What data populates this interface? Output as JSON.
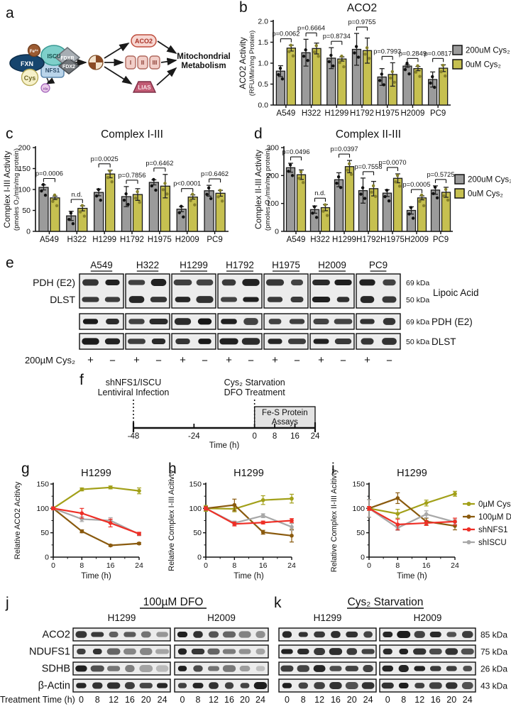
{
  "panel_letters": {
    "a": "a",
    "b": "b",
    "c": "c",
    "d": "d",
    "e": "e",
    "f": "f",
    "g": "g",
    "h": "h",
    "i": "i",
    "j": "j",
    "k": "k"
  },
  "colors": {
    "bar_gray": "#9b9b9b",
    "bar_olive": "#c6c050",
    "dot_gray": "#111111",
    "dot_olive": "#87812a",
    "line_olive": "#a2a019",
    "line_brown": "#8a5a0e",
    "line_red": "#ee2f26",
    "line_gray": "#a8a8a8",
    "blot_band": "#161616",
    "blot_bg": "#ececec"
  },
  "panel_a": {
    "fe": "Fe³⁺",
    "fxn": "FXN",
    "iscu": "ISCU",
    "nfs1": "NFS1",
    "fdxr": "FDXR",
    "fdx2": "FDX2",
    "cys": "Cys",
    "ala": "Ala",
    "aco2": "ACO2",
    "complexes": [
      "I",
      "II",
      "III"
    ],
    "lias": "LIAS",
    "target_lines": [
      "Mitochondrial",
      "Metabolism"
    ]
  },
  "legend_bars": {
    "items": [
      {
        "label": "200uM Cys₂",
        "color_key": "bar_gray"
      },
      {
        "label": "0uM Cys₂",
        "color_key": "bar_olive"
      }
    ]
  },
  "legend_lines": {
    "items": [
      {
        "label": "0µM Cys₂",
        "color_key": "line_olive"
      },
      {
        "label": "100µM DFO",
        "color_key": "line_brown"
      },
      {
        "label": "shNFS1",
        "color_key": "line_red"
      },
      {
        "label": "shISCU",
        "color_key": "line_gray"
      }
    ]
  },
  "chart_data": {
    "b": {
      "type": "bar",
      "title": "ACO2",
      "ylabel_lines": [
        "ACO2 Activity",
        "(RFU/Min/mg Protein)"
      ],
      "categories": [
        "A549",
        "H322",
        "H1299",
        "H1792",
        "H1975",
        "H2009",
        "PC9"
      ],
      "series": [
        {
          "name": "200uM Cys₂",
          "values": [
            0.81,
            1.25,
            1.12,
            1.33,
            0.67,
            0.93,
            0.61
          ],
          "errors": [
            0.13,
            0.32,
            0.25,
            0.38,
            0.2,
            0.03,
            0.18
          ]
        },
        {
          "name": "0uM Cys₂",
          "values": [
            1.36,
            1.35,
            1.1,
            1.3,
            0.73,
            0.87,
            0.88
          ],
          "errors": [
            0.07,
            0.13,
            0.05,
            0.3,
            0.28,
            0.05,
            0.08
          ]
        }
      ],
      "pvalues": [
        "p=0.0062",
        "p=0.6664",
        "p=0.8734",
        "p=0.9755",
        "p=0.7993",
        "p=0.2849",
        "p=0.0817"
      ],
      "ylim": [
        0,
        2
      ],
      "yticks": [
        0,
        0.5,
        1,
        1.5,
        2
      ],
      "ytick_labels": [
        "0.0",
        "0.5",
        "1.0",
        "1.5",
        "2.0"
      ]
    },
    "c": {
      "type": "bar",
      "title": "Complex I-III",
      "ylabel_lines": [
        "Complex I-III Activity",
        "(pmoles O₂/min/mg protein)"
      ],
      "categories": [
        "A549",
        "H322",
        "H1299",
        "H1792",
        "H1975",
        "H2009",
        "PC9"
      ],
      "series": [
        {
          "name": "200uM Cys₂",
          "values": [
            105,
            37,
            93,
            83,
            117,
            53,
            97
          ],
          "errors": [
            6,
            11,
            8,
            24,
            6,
            6,
            13
          ]
        },
        {
          "name": "0uM Cys₂",
          "values": [
            80,
            55,
            137,
            88,
            108,
            82,
            91
          ],
          "errors": [
            4,
            6,
            9,
            14,
            28,
            5,
            7
          ]
        }
      ],
      "pvalues": [
        "p=0.0006",
        "n.d.",
        "p=0.0025",
        "p=0.7856",
        "p=0.6462",
        "p<0.0001",
        "p=0.6462"
      ],
      "ylim": [
        0,
        200
      ],
      "yticks": [
        0,
        50,
        100,
        150,
        200
      ],
      "ytick_labels": [
        "0",
        "50",
        "100",
        "150",
        "200"
      ]
    },
    "d": {
      "type": "bar",
      "title": "Complex II-III",
      "ylabel_lines": [
        "Complex II-III Activity",
        "(pmoles O₂/min/mg protein)"
      ],
      "categories": [
        "A549",
        "H322",
        "H1299",
        "H1792",
        "H1975",
        "H2009",
        "PC9"
      ],
      "series": [
        {
          "name": "200uM Cys₂",
          "values": [
            228,
            78,
            185,
            146,
            137,
            75,
            148
          ],
          "errors": [
            16,
            13,
            25,
            45,
            12,
            13,
            15
          ]
        },
        {
          "name": "0uM Cys₂",
          "values": [
            203,
            85,
            232,
            153,
            190,
            120,
            140
          ],
          "errors": [
            17,
            11,
            22,
            26,
            16,
            7,
            18
          ]
        }
      ],
      "pvalues": [
        "p=0.0496",
        "n.d.",
        "p=0.0397",
        "p=0.7558",
        "p=0.0070",
        "p=0.0005",
        "p=0.5725"
      ],
      "ylim": [
        0,
        300
      ],
      "yticks": [
        0,
        100,
        200,
        300
      ],
      "ytick_labels": [
        "0",
        "100",
        "200",
        "300"
      ]
    },
    "g": {
      "type": "line",
      "title": "H1299",
      "ylabel": "Relative ACO2 Acitivty",
      "xlabel": "Time (h)",
      "x": [
        0,
        8,
        16,
        24
      ],
      "ylim": [
        0,
        150
      ],
      "yticks": [
        0,
        50,
        100,
        150
      ],
      "series": [
        {
          "name": "0µM Cys₂",
          "color_key": "line_olive",
          "values": [
            100,
            139,
            143,
            136
          ],
          "errors": [
            3,
            3,
            3,
            6
          ]
        },
        {
          "name": "100µM DFO",
          "color_key": "line_brown",
          "values": [
            100,
            53,
            24,
            28
          ],
          "errors": [
            3,
            3,
            2,
            2
          ]
        },
        {
          "name": "shNFS1",
          "color_key": "line_red",
          "values": [
            100,
            90,
            70,
            48
          ],
          "errors": [
            3,
            10,
            8,
            3
          ]
        },
        {
          "name": "shISCU",
          "color_key": "line_gray",
          "values": [
            100,
            78,
            75,
            47
          ],
          "errors": [
            3,
            5,
            6,
            3
          ]
        }
      ]
    },
    "h": {
      "type": "line",
      "title": "H1299",
      "ylabel": "Relative Complex I-III Acitivty",
      "xlabel": "Time (h)",
      "x": [
        0,
        8,
        16,
        24
      ],
      "ylim": [
        0,
        150
      ],
      "yticks": [
        0,
        50,
        100,
        150
      ],
      "series": [
        {
          "name": "0µM Cys₂",
          "color_key": "line_olive",
          "values": [
            100,
            99,
            117,
            120
          ],
          "errors": [
            6,
            6,
            9,
            9
          ]
        },
        {
          "name": "100µM DFO",
          "color_key": "line_brown",
          "values": [
            100,
            107,
            51,
            44
          ],
          "errors": [
            4,
            12,
            4,
            13
          ]
        },
        {
          "name": "shNFS1",
          "color_key": "line_red",
          "values": [
            100,
            68,
            71,
            75
          ],
          "errors": [
            3,
            4,
            3,
            4
          ]
        },
        {
          "name": "shISCU",
          "color_key": "line_gray",
          "values": [
            100,
            70,
            85,
            62
          ],
          "errors": [
            3,
            4,
            4,
            7
          ]
        }
      ]
    },
    "i": {
      "type": "line",
      "title": "H1299",
      "ylabel": "Relative Complex II-III Acitivty",
      "xlabel": "Time (h)",
      "x": [
        0,
        8,
        16,
        24
      ],
      "ylim": [
        0,
        150
      ],
      "yticks": [
        0,
        50,
        100,
        150
      ],
      "series": [
        {
          "name": "0µM Cys₂",
          "color_key": "line_olive",
          "values": [
            100,
            89,
            111,
            130
          ],
          "errors": [
            4,
            9,
            6,
            5
          ]
        },
        {
          "name": "100µM DFO",
          "color_key": "line_brown",
          "values": [
            100,
            121,
            73,
            64
          ],
          "errors": [
            18,
            11,
            7,
            8
          ]
        },
        {
          "name": "shNFS1",
          "color_key": "line_red",
          "values": [
            100,
            67,
            70,
            73
          ],
          "errors": [
            4,
            11,
            5,
            7
          ]
        },
        {
          "name": "shISCU",
          "color_key": "line_gray",
          "values": [
            100,
            60,
            88,
            72
          ],
          "errors": [
            18,
            5,
            7,
            5
          ]
        }
      ]
    }
  },
  "timeline_f": {
    "events": [
      {
        "lines": [
          "shNFS1/ISCU",
          "Lentiviral Infection"
        ],
        "t": -48
      },
      {
        "lines": [
          "Cys₂ Starvation",
          "DFO Treatment"
        ],
        "t": 0
      }
    ],
    "box_lines": [
      "Fe-S Protein",
      "Assays"
    ],
    "box_range": [
      0,
      24
    ],
    "range": [
      -48,
      24
    ],
    "tick_labels": [
      "-48",
      "-24",
      "0",
      "8",
      "16",
      "24"
    ],
    "ticks": [
      -48,
      -24,
      0,
      8,
      16,
      24
    ],
    "xlabel": "Time (h)"
  },
  "blot_e": {
    "cell_lines": [
      "A549",
      "H322",
      "H1299",
      "H1792",
      "H1975",
      "H2009",
      "PC9"
    ],
    "left_labels": [
      "PDH (E2)",
      "DLST"
    ],
    "group_kda": [
      "69 kDa",
      "50 kDa"
    ],
    "group_label": "Lipoic Acid",
    "single_rows": [
      {
        "kda": "69 kDa",
        "name": "PDH (E2)"
      },
      {
        "kda": "50 kDa",
        "name": "DLST"
      }
    ],
    "condition_label": "200µM Cys₂",
    "signs": [
      "+",
      "−"
    ]
  },
  "blot_j": {
    "title": "100µM DFO",
    "groups": [
      "H1299",
      "H2009"
    ],
    "rows": [
      "ACO2",
      "NDUFS1",
      "SDHB",
      "β-Actin"
    ],
    "time_label": "Treatment Time (h)",
    "times": [
      "0",
      "8",
      "12",
      "16",
      "20",
      "24"
    ]
  },
  "blot_k": {
    "title": "Cys₂ Starvation",
    "groups": [
      "H1299",
      "H2009"
    ],
    "kda": [
      "85 kDa",
      "75 kDa",
      "26 kDa",
      "43 kDa"
    ],
    "times": [
      "0",
      "8",
      "12",
      "16",
      "20",
      "24"
    ]
  }
}
